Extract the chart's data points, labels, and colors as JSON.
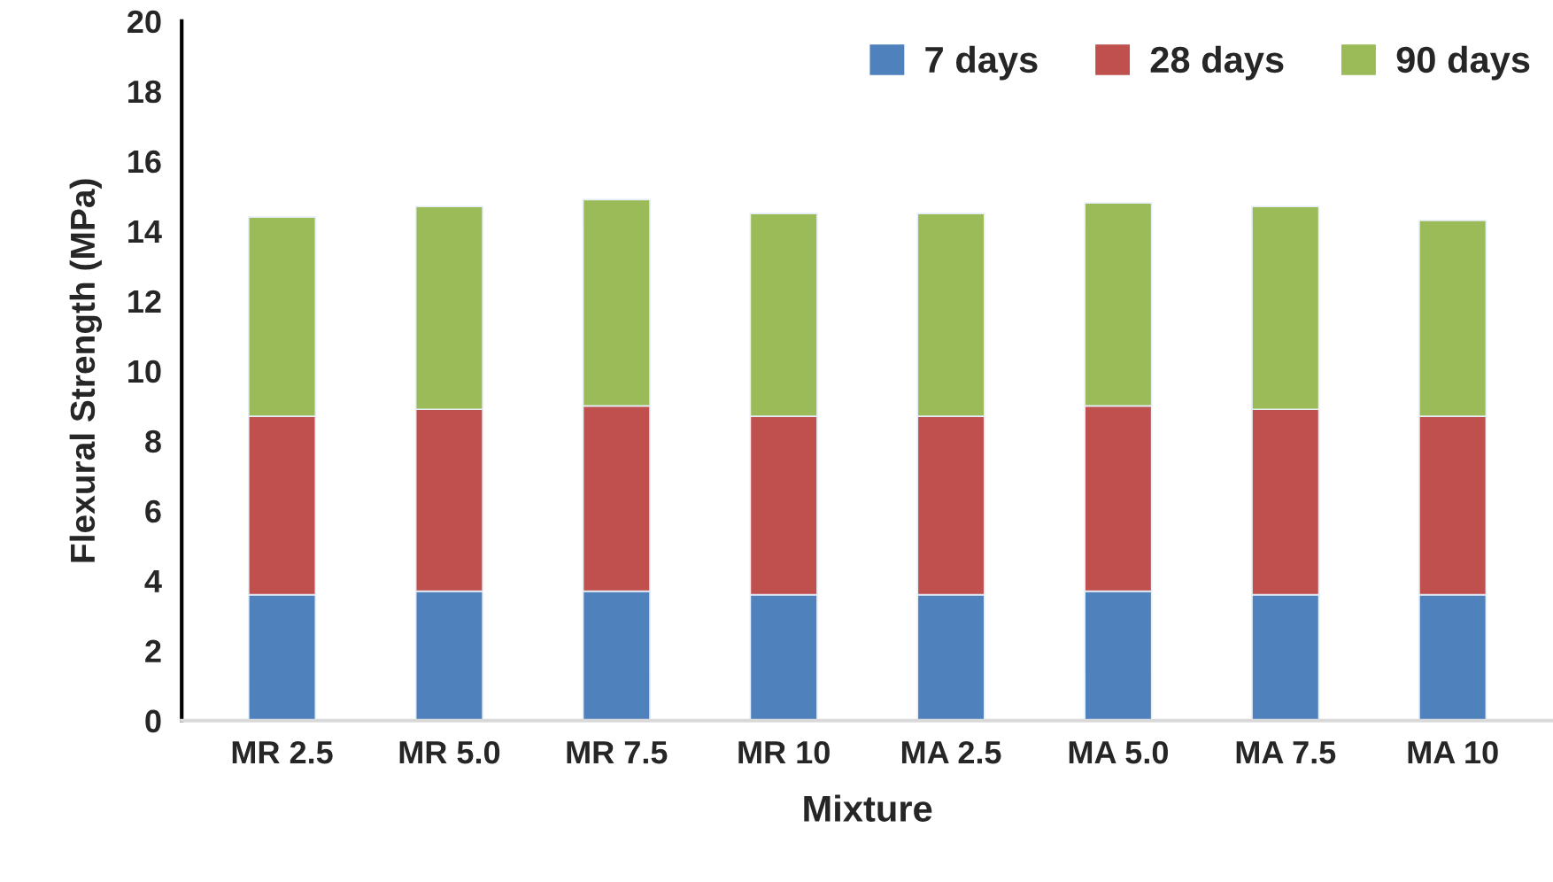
{
  "chart_data": {
    "type": "bar",
    "stacked": true,
    "xlabel": "Mixture",
    "ylabel": "Flexural Strength (MPa)",
    "categories": [
      "MR 2.5",
      "MR 5.0",
      "MR 7.5",
      "MR 10",
      "MA 2.5",
      "MA 5.0",
      "MA 7.5",
      "MA 10"
    ],
    "series": [
      {
        "name": "7 days",
        "color": "#4f81bd",
        "values": [
          3.6,
          3.7,
          3.7,
          3.6,
          3.6,
          3.7,
          3.6,
          3.6
        ]
      },
      {
        "name": "28 days",
        "color": "#c0504d",
        "values": [
          5.1,
          5.2,
          5.3,
          5.1,
          5.1,
          5.3,
          5.3,
          5.1
        ]
      },
      {
        "name": "90 days",
        "color": "#9bbb59",
        "values": [
          5.7,
          5.8,
          5.9,
          5.8,
          5.8,
          5.8,
          5.8,
          5.6
        ]
      }
    ],
    "ylim": [
      0,
      20
    ],
    "yticks": [
      0,
      2,
      4,
      6,
      8,
      10,
      12,
      14,
      16,
      18,
      20
    ],
    "grid": false,
    "legend": "top right"
  }
}
